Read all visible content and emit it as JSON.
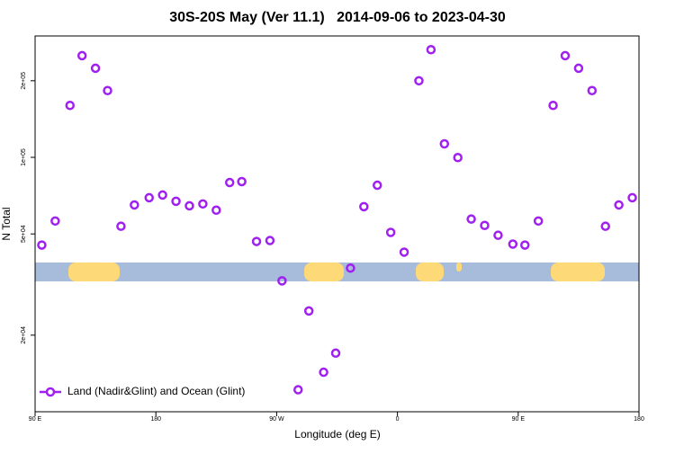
{
  "chart_data": {
    "type": "scatter",
    "title": "30S-20S May (Ver 11.1)   2014-09-06 to 2023-04-30",
    "x_label": "Longitude (deg E)",
    "y_label": "N Total",
    "xlim": [
      90,
      540
    ],
    "xticks": [
      {
        "value": 90,
        "label": "90 E"
      },
      180,
      {
        "value": 270,
        "label": "90 W"
      },
      {
        "value": 360,
        "label": "0"
      },
      {
        "value": 450,
        "label": "90 E"
      },
      {
        "value": 540,
        "label": "180"
      }
    ],
    "ylim": [
      10000,
      300000
    ],
    "log_y": true,
    "yticks": [
      {
        "value": 20000,
        "label": "2e+04"
      },
      {
        "value": 50000,
        "label": "5e+04"
      },
      {
        "value": 100000,
        "label": "1e+05"
      },
      {
        "value": 200000,
        "label": "2e+05"
      }
    ],
    "legend": "bottom-left",
    "series": [
      {
        "name": "Land (Nadir&Glint) and Ocean (Glint)",
        "color": "#a020f0",
        "x": [
          95,
          105,
          116,
          125,
          135,
          144,
          154,
          164,
          175,
          185,
          195,
          205,
          215,
          225,
          235,
          244,
          255,
          265,
          274,
          286,
          294,
          305,
          314,
          325,
          335,
          345,
          355,
          365,
          376,
          385,
          395,
          405,
          415,
          425,
          435,
          446,
          455,
          465,
          476,
          485,
          495,
          505,
          515,
          525,
          535
        ],
        "values": [
          45200,
          56200,
          160000,
          251000,
          224000,
          183000,
          53600,
          65000,
          69400,
          71100,
          67200,
          64500,
          65600,
          62000,
          79600,
          80300,
          46700,
          47100,
          32700,
          12200,
          24900,
          14300,
          17000,
          36700,
          64000,
          77700,
          50700,
          42400,
          200000,
          265000,
          113000,
          99800,
          57200,
          54000,
          49400,
          45600,
          45200,
          56200,
          160000,
          251000,
          224000,
          183000,
          53600,
          65000,
          69400
        ]
      }
    ]
  }
}
